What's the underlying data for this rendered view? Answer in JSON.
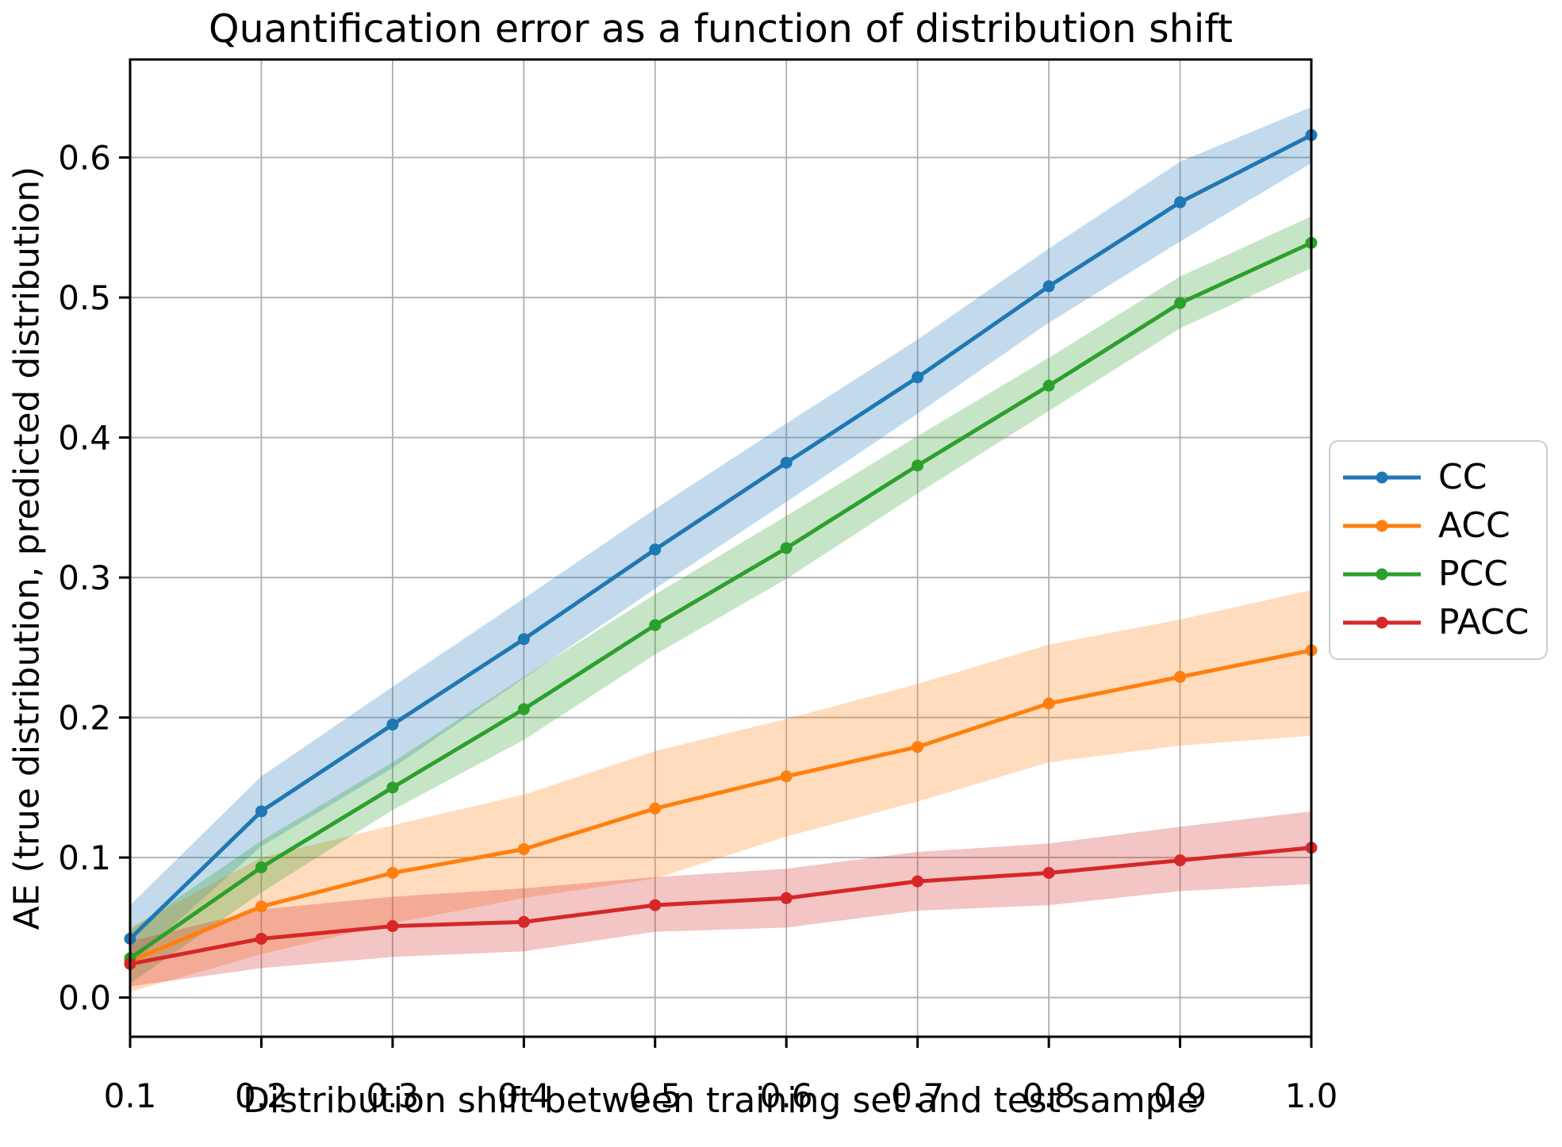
{
  "figure": {
    "kind": "matplotlib-line-chart"
  },
  "chart_data": {
    "type": "line",
    "title": "Quantification error as a function of distribution shift",
    "xlabel": "Distribution shift between training set and test sample",
    "ylabel": "AE (true distribution, predicted distribution)",
    "x": [
      0.1,
      0.2,
      0.3,
      0.4,
      0.5,
      0.6,
      0.7,
      0.8,
      0.9,
      1.0
    ],
    "series": [
      {
        "name": "CC",
        "color": "#1f77b4",
        "values": [
          0.042,
          0.133,
          0.195,
          0.256,
          0.32,
          0.382,
          0.443,
          0.508,
          0.568,
          0.616
        ],
        "band_lower": [
          0.024,
          0.108,
          0.164,
          0.228,
          0.292,
          0.354,
          0.417,
          0.482,
          0.54,
          0.596
        ],
        "band_upper": [
          0.066,
          0.158,
          0.222,
          0.285,
          0.349,
          0.41,
          0.47,
          0.535,
          0.597,
          0.636
        ]
      },
      {
        "name": "ACC",
        "color": "#ff7f0e",
        "values": [
          0.026,
          0.065,
          0.089,
          0.106,
          0.135,
          0.158,
          0.179,
          0.21,
          0.229,
          0.248
        ],
        "band_lower": [
          0.004,
          0.031,
          0.053,
          0.071,
          0.085,
          0.115,
          0.14,
          0.168,
          0.18,
          0.187
        ],
        "band_upper": [
          0.05,
          0.1,
          0.123,
          0.145,
          0.176,
          0.199,
          0.224,
          0.252,
          0.27,
          0.291
        ]
      },
      {
        "name": "PCC",
        "color": "#2ca02c",
        "values": [
          0.028,
          0.093,
          0.15,
          0.206,
          0.266,
          0.321,
          0.38,
          0.437,
          0.496,
          0.539
        ],
        "band_lower": [
          0.01,
          0.075,
          0.134,
          0.184,
          0.245,
          0.299,
          0.36,
          0.419,
          0.478,
          0.521
        ],
        "band_upper": [
          0.048,
          0.112,
          0.168,
          0.229,
          0.288,
          0.344,
          0.401,
          0.457,
          0.515,
          0.558
        ]
      },
      {
        "name": "PACC",
        "color": "#d62728",
        "values": [
          0.024,
          0.042,
          0.051,
          0.054,
          0.066,
          0.071,
          0.083,
          0.089,
          0.098,
          0.107
        ],
        "band_lower": [
          0.008,
          0.021,
          0.029,
          0.033,
          0.047,
          0.05,
          0.062,
          0.066,
          0.076,
          0.081
        ],
        "band_upper": [
          0.04,
          0.063,
          0.072,
          0.078,
          0.086,
          0.092,
          0.104,
          0.11,
          0.122,
          0.133
        ]
      }
    ],
    "xlim": [
      0.1,
      1.0
    ],
    "ylim": [
      -0.028,
      0.67
    ],
    "xticks": [
      "0.1",
      "0.2",
      "0.3",
      "0.4",
      "0.5",
      "0.6",
      "0.7",
      "0.8",
      "0.9",
      "1.0"
    ],
    "yticks": [
      "0.0",
      "0.1",
      "0.2",
      "0.3",
      "0.4",
      "0.5",
      "0.6"
    ],
    "grid": true,
    "grid_color": "#b0b0b0",
    "band_opacity": 0.27,
    "legend_position": "right"
  }
}
